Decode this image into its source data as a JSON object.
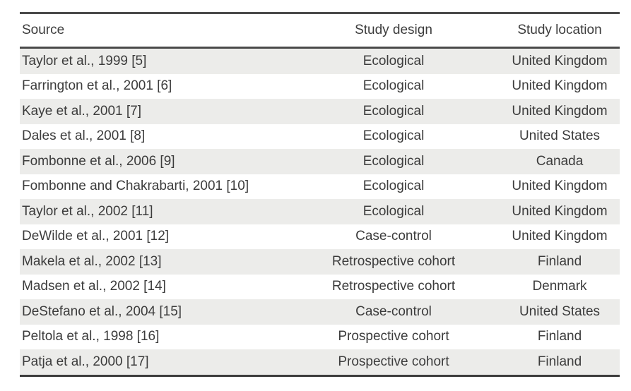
{
  "table": {
    "name": "study-characteristics-table",
    "columns": [
      {
        "key": "source",
        "label": "Source"
      },
      {
        "key": "design",
        "label": "Study design"
      },
      {
        "key": "location",
        "label": "Study location"
      }
    ],
    "rows": [
      {
        "source": "Taylor et al., 1999 [5]",
        "design": "Ecological",
        "location": "United Kingdom"
      },
      {
        "source": "Farrington et al., 2001 [6]",
        "design": "Ecological",
        "location": "United Kingdom"
      },
      {
        "source": "Kaye et al., 2001 [7]",
        "design": "Ecological",
        "location": "United Kingdom"
      },
      {
        "source": "Dales et al., 2001 [8]",
        "design": "Ecological",
        "location": "United States"
      },
      {
        "source": "Fombonne et al., 2006 [9]",
        "design": "Ecological",
        "location": "Canada"
      },
      {
        "source": "Fombonne and Chakrabarti, 2001 [10]",
        "design": "Ecological",
        "location": "United Kingdom"
      },
      {
        "source": "Taylor et al., 2002 [11]",
        "design": "Ecological",
        "location": "United Kingdom"
      },
      {
        "source": "DeWilde et al., 2001 [12]",
        "design": "Case-control",
        "location": "United Kingdom"
      },
      {
        "source": "Makela et al., 2002 [13]",
        "design": "Retrospective cohort",
        "location": "Finland"
      },
      {
        "source": "Madsen et al., 2002 [14]",
        "design": "Retrospective cohort",
        "location": "Denmark"
      },
      {
        "source": "DeStefano et al., 2004 [15]",
        "design": "Case-control",
        "location": "United States"
      },
      {
        "source": "Peltola et al., 1998 [16]",
        "design": "Prospective cohort",
        "location": "Finland"
      },
      {
        "source": "Patja et al., 2000 [17]",
        "design": "Prospective cohort",
        "location": "Finland"
      }
    ],
    "colors": {
      "stripe": "#ececea",
      "text": "#3c3c3c",
      "rule": "#4a4a4a"
    }
  }
}
